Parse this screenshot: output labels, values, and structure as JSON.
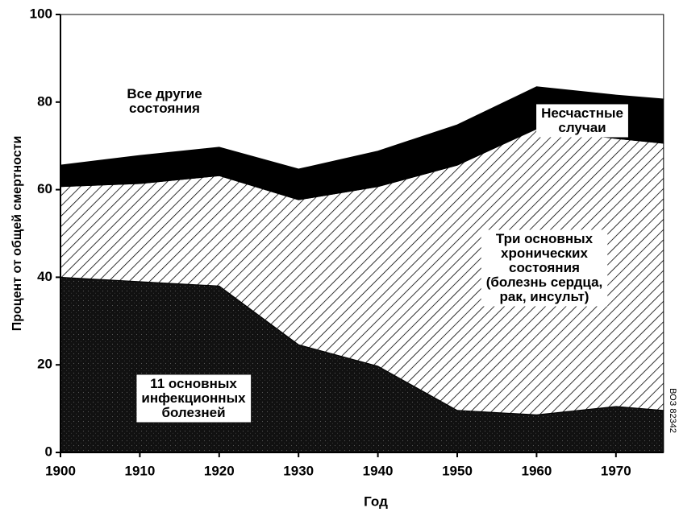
{
  "chart_data": {
    "type": "stacked_area",
    "x_label": "Год",
    "y_label": "Процент от общей смертности",
    "note": "ВОЗ 82342",
    "x": [
      1900,
      1910,
      1920,
      1930,
      1940,
      1950,
      1960,
      1970,
      1976
    ],
    "xlim": [
      1900,
      1976
    ],
    "xticks": [
      1900,
      1910,
      1920,
      1930,
      1940,
      1950,
      1960,
      1970
    ],
    "ylim": [
      0,
      100
    ],
    "yticks": [
      0,
      20,
      40,
      60,
      80,
      100
    ],
    "series": [
      {
        "name": "11 основных\nинфекционных\nболезней",
        "color": "#111111",
        "pattern": "dots",
        "values": [
          40,
          39,
          38,
          24.6,
          19.7,
          9.6,
          8.6,
          10.5,
          9.6
        ]
      },
      {
        "name": "Три основных\nхронических\nсостояния\n(болезнь сердца,\nрак, инсульт)",
        "color": "#ffffff",
        "pattern": "hatch",
        "values": [
          20.7,
          22.4,
          25.2,
          33.1,
          41.0,
          56.0,
          65.3,
          61.2,
          61.0
        ]
      },
      {
        "name": "Несчастные\nслучаи",
        "color": "#000000",
        "values": [
          4.9,
          6.4,
          6.5,
          7.0,
          8.1,
          9.2,
          9.6,
          9.9,
          10.1
        ]
      },
      {
        "name": "Все другие\nсостояния",
        "color": "#ffffff",
        "values": [
          34.4,
          32.2,
          30.3,
          35.3,
          31.2,
          25.2,
          16.5,
          18.4,
          19.3
        ]
      }
    ]
  }
}
